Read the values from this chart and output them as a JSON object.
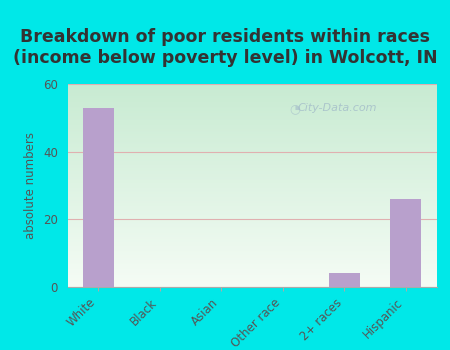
{
  "title_line1": "Breakdown of poor residents within races",
  "title_line2": "(income below poverty level) in Wolcott, IN",
  "categories": [
    "White",
    "Black",
    "Asian",
    "Other race",
    "2+ races",
    "Hispanic"
  ],
  "values": [
    53,
    0,
    0,
    0,
    4,
    26
  ],
  "bar_color": "#b8a0cc",
  "ylabel": "absolute numbers",
  "ylim": [
    0,
    60
  ],
  "yticks": [
    0,
    20,
    40,
    60
  ],
  "bg_outer": "#00e8e8",
  "title_color": "#333333",
  "title_fontsize": 12.5,
  "title_fontweight": "bold",
  "axis_label_color": "#555555",
  "tick_color": "#555555",
  "watermark": "City-Data.com",
  "grid_color": "#e0b0b0",
  "bar_width": 0.5
}
